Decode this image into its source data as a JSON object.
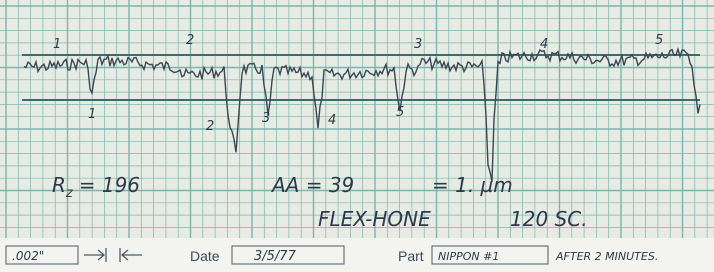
{
  "annotations": {
    "peaks": [
      "1",
      "2",
      "3",
      "4",
      "5"
    ],
    "valleys": [
      "1",
      "2",
      "3",
      "4",
      "5"
    ],
    "rz": {
      "symbol": "R",
      "subscript": "z",
      "value": "= 196"
    },
    "aa": "AA = 39",
    "micrometer": "= 1. µm",
    "process": "FLEX-HONE",
    "grit": "120 SC."
  },
  "footer": {
    "scale": ".002\"",
    "date_label": "Date",
    "date": "3/5/77",
    "part_label": "Part",
    "part": "NIPPON #1",
    "note": "AFTER 2 MINUTES."
  }
}
